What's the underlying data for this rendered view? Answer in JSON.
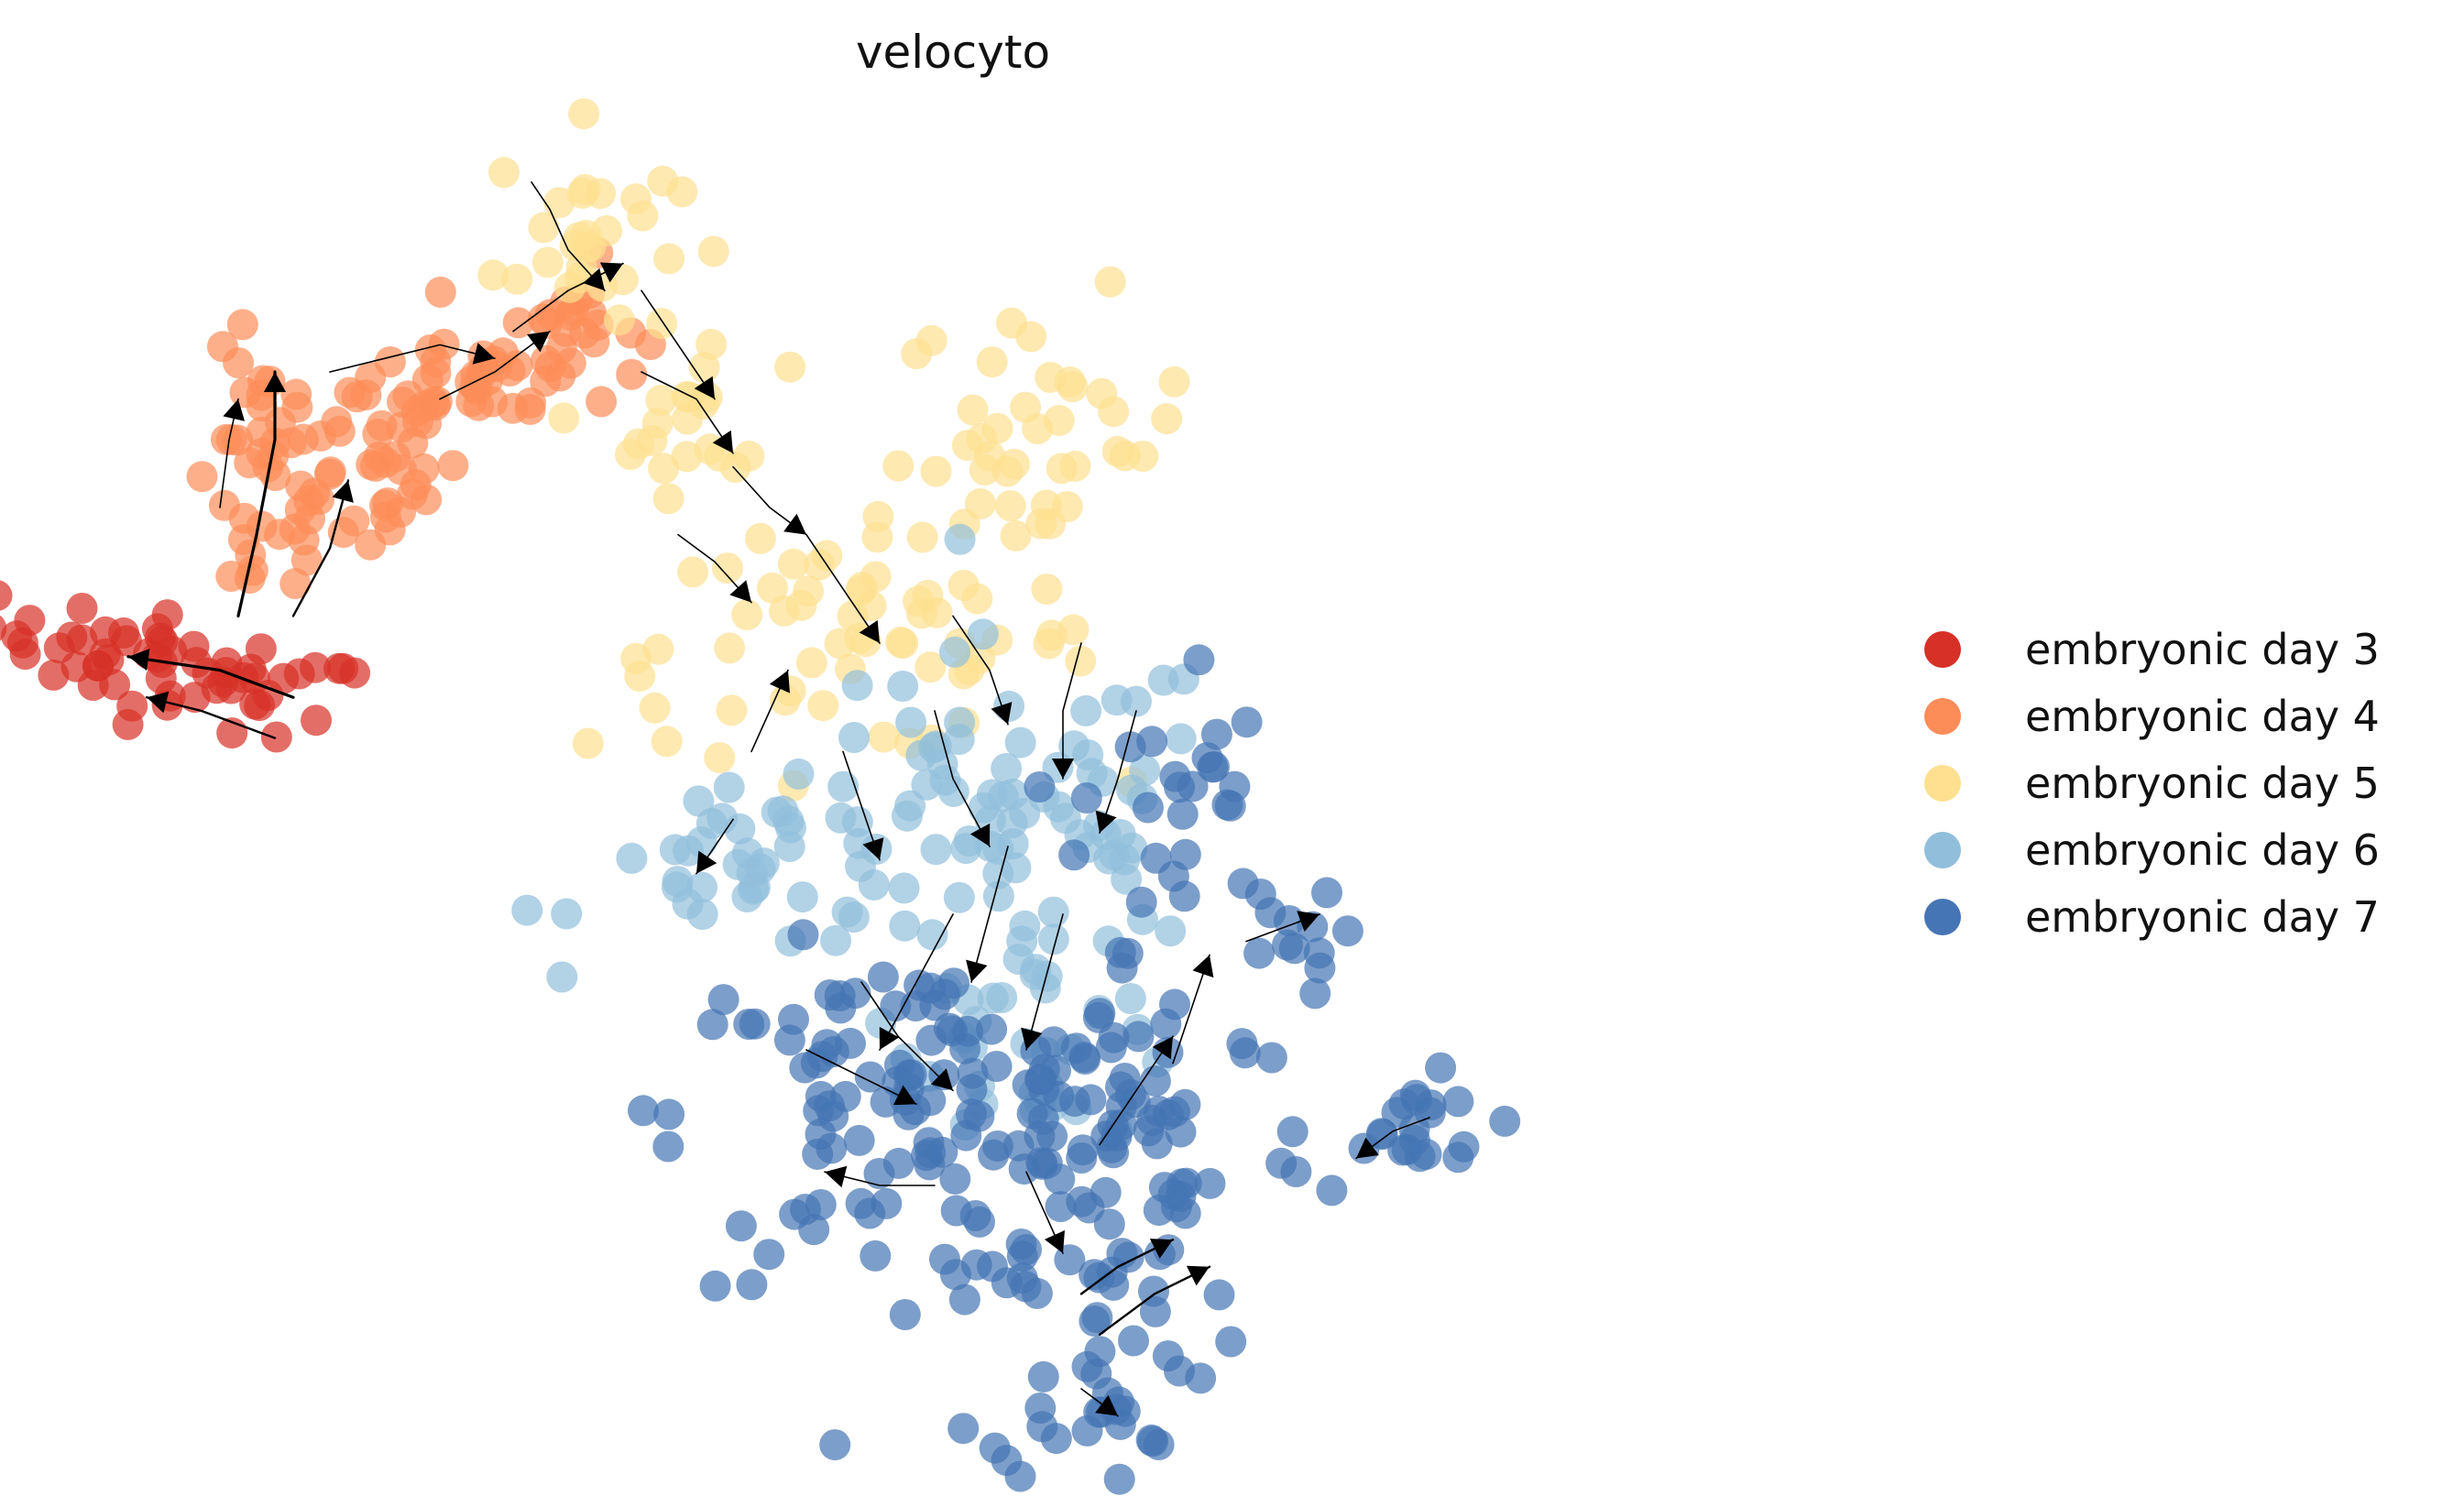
{
  "chart_data": {
    "type": "scatter",
    "title": "velocyto",
    "xlabel": "",
    "ylabel": "",
    "axes_visible": false,
    "grid": false,
    "legend_position": "right",
    "overlay": "velocity streamlines with arrowheads",
    "series": [
      {
        "name": "embryonic day 3",
        "color": "#d73027",
        "clusters": [
          {
            "cx": 0.08,
            "cy": 0.58,
            "sx": 0.055,
            "sy": 0.018,
            "n": 60,
            "tilt": -0.3
          }
        ]
      },
      {
        "name": "embryonic day 4",
        "color": "#fc8d59",
        "clusters": [
          {
            "cx": 0.125,
            "cy": 0.71,
            "sx": 0.02,
            "sy": 0.05,
            "n": 40,
            "tilt": 0.0
          },
          {
            "cx": 0.18,
            "cy": 0.74,
            "sx": 0.025,
            "sy": 0.04,
            "n": 40,
            "tilt": 0.0
          },
          {
            "cx": 0.245,
            "cy": 0.8,
            "sx": 0.03,
            "sy": 0.02,
            "n": 30,
            "tilt": 0.0
          },
          {
            "cx": 0.29,
            "cy": 0.83,
            "sx": 0.02,
            "sy": 0.025,
            "n": 25,
            "tilt": 0.0
          }
        ]
      },
      {
        "name": "embryonic day 5",
        "color": "#fee090",
        "clusters": [
          {
            "cx": 0.3,
            "cy": 0.9,
            "sx": 0.025,
            "sy": 0.04,
            "n": 30,
            "tilt": 0.0
          },
          {
            "cx": 0.36,
            "cy": 0.76,
            "sx": 0.025,
            "sy": 0.025,
            "n": 20,
            "tilt": 0.0
          },
          {
            "cx": 0.55,
            "cy": 0.75,
            "sx": 0.04,
            "sy": 0.05,
            "n": 40,
            "tilt": 0.0
          },
          {
            "cx": 0.44,
            "cy": 0.6,
            "sx": 0.07,
            "sy": 0.04,
            "n": 60,
            "tilt": 0.0
          }
        ]
      },
      {
        "name": "embryonic day 6",
        "color": "#91bfdb",
        "clusters": [
          {
            "cx": 0.53,
            "cy": 0.48,
            "sx": 0.06,
            "sy": 0.06,
            "n": 70,
            "tilt": 0.0
          },
          {
            "cx": 0.4,
            "cy": 0.43,
            "sx": 0.05,
            "sy": 0.03,
            "n": 40,
            "tilt": 0.0
          },
          {
            "cx": 0.55,
            "cy": 0.33,
            "sx": 0.04,
            "sy": 0.05,
            "n": 40,
            "tilt": 0.0
          }
        ]
      },
      {
        "name": "embryonic day 7",
        "color": "#4575b4",
        "clusters": [
          {
            "cx": 0.47,
            "cy": 0.25,
            "sx": 0.06,
            "sy": 0.06,
            "n": 110,
            "tilt": 0.0
          },
          {
            "cx": 0.6,
            "cy": 0.24,
            "sx": 0.05,
            "sy": 0.07,
            "n": 70,
            "tilt": 0.0
          },
          {
            "cx": 0.62,
            "cy": 0.48,
            "sx": 0.025,
            "sy": 0.06,
            "n": 25,
            "tilt": 0.0
          },
          {
            "cx": 0.58,
            "cy": 0.08,
            "sx": 0.03,
            "sy": 0.05,
            "n": 40,
            "tilt": 0.0
          },
          {
            "cx": 0.75,
            "cy": 0.24,
            "sx": 0.025,
            "sy": 0.02,
            "n": 20,
            "tilt": 0.0
          },
          {
            "cx": 0.68,
            "cy": 0.38,
            "sx": 0.015,
            "sy": 0.02,
            "n": 12,
            "tilt": 0.0
          }
        ]
      }
    ],
    "streamlines": [
      {
        "path": [
          [
            0.14,
            0.56
          ],
          [
            0.1,
            0.58
          ],
          [
            0.05,
            0.59
          ]
        ],
        "width": 2
      },
      {
        "path": [
          [
            0.13,
            0.53
          ],
          [
            0.09,
            0.55
          ],
          [
            0.06,
            0.56
          ]
        ],
        "width": 1.5
      },
      {
        "path": [
          [
            0.11,
            0.62
          ],
          [
            0.12,
            0.68
          ],
          [
            0.13,
            0.75
          ],
          [
            0.13,
            0.8
          ]
        ],
        "width": 2
      },
      {
        "path": [
          [
            0.14,
            0.62
          ],
          [
            0.16,
            0.67
          ],
          [
            0.17,
            0.72
          ]
        ],
        "width": 1.5
      },
      {
        "path": [
          [
            0.1,
            0.7
          ],
          [
            0.105,
            0.75
          ],
          [
            0.11,
            0.78
          ]
        ],
        "width": 1
      },
      {
        "path": [
          [
            0.16,
            0.8
          ],
          [
            0.19,
            0.81
          ],
          [
            0.22,
            0.82
          ],
          [
            0.25,
            0.81
          ]
        ],
        "width": 1
      },
      {
        "path": [
          [
            0.22,
            0.78
          ],
          [
            0.25,
            0.8
          ],
          [
            0.28,
            0.83
          ]
        ],
        "width": 1
      },
      {
        "path": [
          [
            0.26,
            0.83
          ],
          [
            0.29,
            0.86
          ],
          [
            0.32,
            0.88
          ]
        ],
        "width": 1
      },
      {
        "path": [
          [
            0.27,
            0.94
          ],
          [
            0.28,
            0.92
          ],
          [
            0.29,
            0.89
          ],
          [
            0.31,
            0.86
          ]
        ],
        "width": 1
      },
      {
        "path": [
          [
            0.33,
            0.86
          ],
          [
            0.35,
            0.82
          ],
          [
            0.37,
            0.78
          ]
        ],
        "width": 1
      },
      {
        "path": [
          [
            0.33,
            0.8
          ],
          [
            0.36,
            0.78
          ],
          [
            0.38,
            0.74
          ]
        ],
        "width": 1
      },
      {
        "path": [
          [
            0.38,
            0.73
          ],
          [
            0.4,
            0.7
          ],
          [
            0.42,
            0.68
          ]
        ],
        "width": 1
      },
      {
        "path": [
          [
            0.42,
            0.68
          ],
          [
            0.44,
            0.64
          ],
          [
            0.46,
            0.6
          ]
        ],
        "width": 1
      },
      {
        "path": [
          [
            0.5,
            0.62
          ],
          [
            0.52,
            0.58
          ],
          [
            0.53,
            0.54
          ]
        ],
        "width": 1
      },
      {
        "path": [
          [
            0.49,
            0.55
          ],
          [
            0.5,
            0.5
          ],
          [
            0.52,
            0.45
          ]
        ],
        "width": 1
      },
      {
        "path": [
          [
            0.44,
            0.52
          ],
          [
            0.45,
            0.48
          ],
          [
            0.46,
            0.44
          ]
        ],
        "width": 1
      },
      {
        "path": [
          [
            0.57,
            0.6
          ],
          [
            0.56,
            0.55
          ],
          [
            0.56,
            0.5
          ]
        ],
        "width": 1
      },
      {
        "path": [
          [
            0.6,
            0.55
          ],
          [
            0.59,
            0.5
          ],
          [
            0.58,
            0.46
          ]
        ],
        "width": 1
      },
      {
        "path": [
          [
            0.53,
            0.45
          ],
          [
            0.52,
            0.4
          ],
          [
            0.51,
            0.35
          ]
        ],
        "width": 1
      },
      {
        "path": [
          [
            0.5,
            0.4
          ],
          [
            0.48,
            0.35
          ],
          [
            0.46,
            0.3
          ]
        ],
        "width": 1
      },
      {
        "path": [
          [
            0.56,
            0.4
          ],
          [
            0.55,
            0.35
          ],
          [
            0.54,
            0.3
          ]
        ],
        "width": 1
      },
      {
        "path": [
          [
            0.45,
            0.35
          ],
          [
            0.47,
            0.31
          ],
          [
            0.5,
            0.27
          ]
        ],
        "width": 1
      },
      {
        "path": [
          [
            0.42,
            0.3
          ],
          [
            0.45,
            0.28
          ],
          [
            0.48,
            0.26
          ]
        ],
        "width": 1
      },
      {
        "path": [
          [
            0.49,
            0.2
          ],
          [
            0.46,
            0.2
          ],
          [
            0.43,
            0.21
          ]
        ],
        "width": 1
      },
      {
        "path": [
          [
            0.54,
            0.21
          ],
          [
            0.55,
            0.18
          ],
          [
            0.56,
            0.15
          ]
        ],
        "width": 1
      },
      {
        "path": [
          [
            0.58,
            0.23
          ],
          [
            0.6,
            0.27
          ],
          [
            0.62,
            0.31
          ]
        ],
        "width": 1
      },
      {
        "path": [
          [
            0.62,
            0.29
          ],
          [
            0.63,
            0.33
          ],
          [
            0.64,
            0.37
          ]
        ],
        "width": 1
      },
      {
        "path": [
          [
            0.57,
            0.12
          ],
          [
            0.59,
            0.14
          ],
          [
            0.62,
            0.16
          ]
        ],
        "width": 1.5
      },
      {
        "path": [
          [
            0.58,
            0.09
          ],
          [
            0.61,
            0.12
          ],
          [
            0.64,
            0.14
          ]
        ],
        "width": 1.5
      },
      {
        "path": [
          [
            0.57,
            0.05
          ],
          [
            0.58,
            0.04
          ],
          [
            0.59,
            0.03
          ]
        ],
        "width": 1
      },
      {
        "path": [
          [
            0.66,
            0.38
          ],
          [
            0.68,
            0.39
          ],
          [
            0.7,
            0.4
          ]
        ],
        "width": 1
      },
      {
        "path": [
          [
            0.76,
            0.25
          ],
          [
            0.74,
            0.24
          ],
          [
            0.72,
            0.22
          ]
        ],
        "width": 1
      },
      {
        "path": [
          [
            0.38,
            0.47
          ],
          [
            0.37,
            0.45
          ],
          [
            0.36,
            0.43
          ]
        ],
        "width": 1
      },
      {
        "path": [
          [
            0.39,
            0.52
          ],
          [
            0.4,
            0.55
          ],
          [
            0.41,
            0.58
          ]
        ],
        "width": 1
      },
      {
        "path": [
          [
            0.35,
            0.68
          ],
          [
            0.37,
            0.66
          ],
          [
            0.39,
            0.63
          ]
        ],
        "width": 1
      }
    ]
  }
}
